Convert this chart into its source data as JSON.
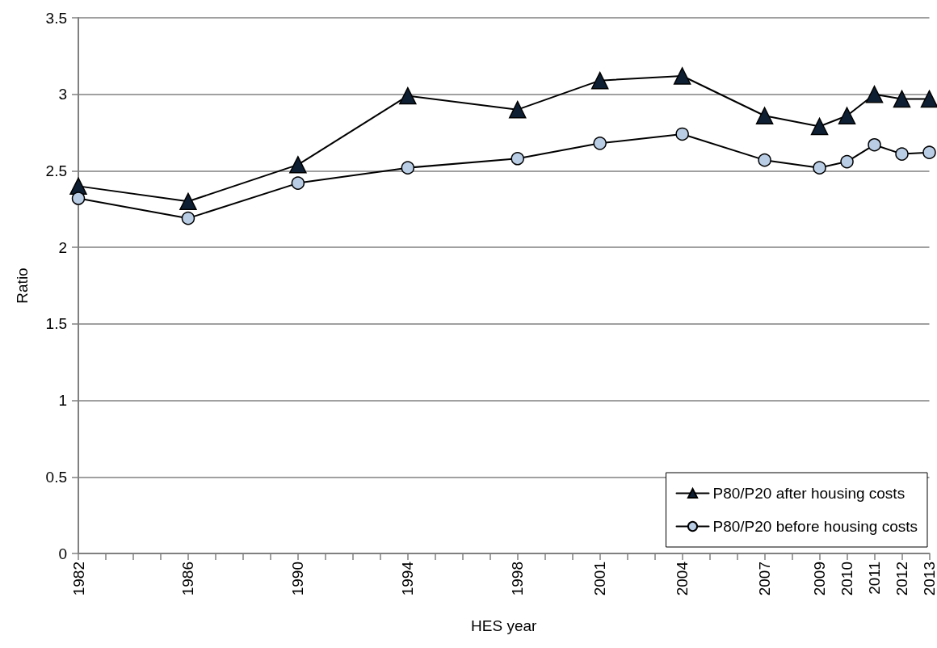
{
  "chart_data": {
    "type": "line",
    "xlabel": "HES year",
    "ylabel": "Ratio",
    "x": [
      1982,
      1986,
      1990,
      1994,
      1998,
      2001,
      2004,
      2007,
      2009,
      2010,
      2011,
      2012,
      2013
    ],
    "series": [
      {
        "name": "P80/P20 after housing costs",
        "color": "#0f1f33",
        "marker": "triangle",
        "values": [
          2.4,
          2.3,
          2.54,
          2.99,
          2.9,
          3.09,
          3.12,
          2.86,
          2.79,
          2.86,
          3.0,
          2.97,
          2.97
        ]
      },
      {
        "name": "P80/P20 before housing costs",
        "color": "#b9cde5",
        "marker": "circle",
        "values": [
          2.32,
          2.19,
          2.42,
          2.52,
          2.58,
          2.68,
          2.74,
          2.57,
          2.52,
          2.56,
          2.67,
          2.61,
          2.62
        ]
      }
    ],
    "xlim": [
      1982,
      2013
    ],
    "xticks": [
      1982,
      {
        "value": 1983,
        "label": null
      },
      {
        "value": 1984,
        "label": null
      },
      {
        "value": 1985,
        "label": null
      },
      1986,
      {
        "value": 1987,
        "label": null
      },
      {
        "value": 1988,
        "label": null
      },
      {
        "value": 1989,
        "label": null
      },
      1990,
      {
        "value": 1991,
        "label": null
      },
      {
        "value": 1992,
        "label": null
      },
      {
        "value": 1993,
        "label": null
      },
      1994,
      {
        "value": 1995,
        "label": null
      },
      {
        "value": 1996,
        "label": null
      },
      {
        "value": 1997,
        "label": null
      },
      1998,
      {
        "value": 1999,
        "label": null
      },
      {
        "value": 2000,
        "label": null
      },
      2001,
      {
        "value": 2002,
        "label": null
      },
      {
        "value": 2003,
        "label": null
      },
      2004,
      {
        "value": 2005,
        "label": null
      },
      {
        "value": 2006,
        "label": null
      },
      2007,
      {
        "value": 2008,
        "label": null
      },
      2009,
      2010,
      2011,
      2012,
      2013
    ],
    "ylim": [
      0,
      3.5
    ],
    "yticks": [
      0,
      0.5,
      1,
      1.5,
      2,
      2.5,
      3,
      3.5
    ],
    "grid": "y",
    "legend": "bottom right",
    "line_style": "solid"
  }
}
